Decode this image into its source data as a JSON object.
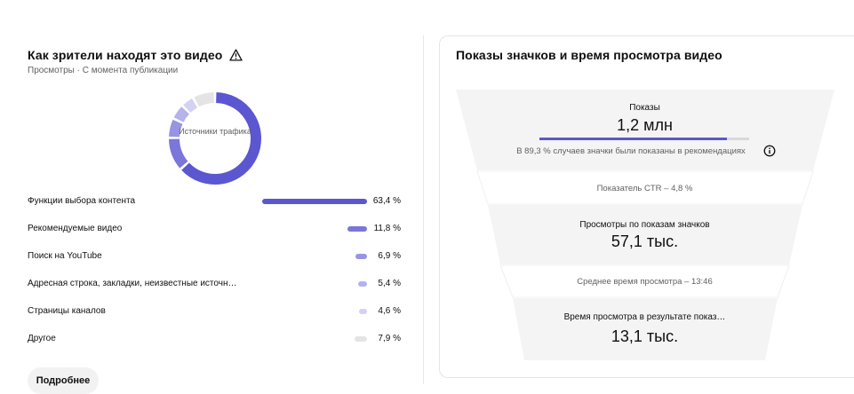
{
  "left": {
    "title": "Как зрители находят это видео",
    "title_icon": "warning-triangle-icon",
    "subtitle": "Просмотры · С момента публикации",
    "donut_label": "Источники трафика",
    "sources": [
      {
        "name": "Функции выбора контента",
        "value": "63,4 %",
        "share": 63.4,
        "color": "#5b57d1"
      },
      {
        "name": "Рекомендуемые видео",
        "value": "11,8 %",
        "share": 11.8,
        "color": "#7a76db"
      },
      {
        "name": "Поиск на YouTube",
        "value": "6,9 %",
        "share": 6.9,
        "color": "#9894e4"
      },
      {
        "name": "Адресная строка, закладки, неизвестные источн…",
        "value": "5,4 %",
        "share": 5.4,
        "color": "#b5b2ec"
      },
      {
        "name": "Страницы каналов",
        "value": "4,6 %",
        "share": 4.6,
        "color": "#d3d1f4"
      },
      {
        "name": "Другое",
        "value": "7,9 %",
        "share": 7.9,
        "color": "#e4e4e4"
      }
    ],
    "more_button": "Подробнее"
  },
  "right": {
    "title": "Показы значков и время просмотра видео",
    "impressions_label": "Показы",
    "impressions_value": "1,2 млн",
    "recommend_share": 0.893,
    "recommend_note": "В 89,3 % случаев значки были показаны в рекомендациях",
    "ctr": "Показатель CTR – 4,8 %",
    "views_label": "Просмотры по показам значков",
    "views_value": "57,1 тыс.",
    "avg_time": "Среднее время просмотра – 13:46",
    "watch_label": "Время просмотра в результате показ…",
    "watch_value": "13,1 тыс.",
    "info_icon": "info-icon"
  }
}
